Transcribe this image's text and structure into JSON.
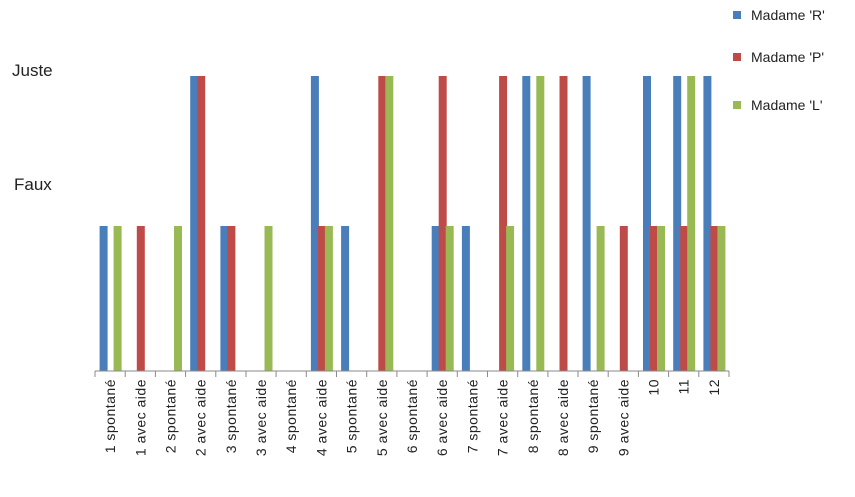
{
  "chart_data": {
    "type": "bar",
    "title": "",
    "xlabel": "",
    "ylabel": "",
    "y_levels": [
      {
        "value": 1,
        "label": "Faux"
      },
      {
        "value": 2,
        "label": "Juste"
      }
    ],
    "ylim": [
      0,
      2
    ],
    "grid": false,
    "legend_position": "top-right",
    "categories": [
      "1 spontané",
      "1 avec aide",
      "2 spontané",
      "2 avec aide",
      "3 spontané",
      "3 avec aide",
      "4 spontané",
      "4 avec aide",
      "5 spontané",
      "5 avec aide",
      "6 spontané",
      "6 avec aide",
      "7 spontané",
      "7 avec aide",
      "8 spontané",
      "8 avec aide",
      "9 spontané",
      "9 avec aide",
      "10",
      "11",
      "12"
    ],
    "series": [
      {
        "name": "Madame 'R'",
        "color": "#4a7ebb",
        "values": [
          1,
          0,
          0,
          2,
          1,
          0,
          0,
          2,
          1,
          0,
          0,
          1,
          1,
          0,
          2,
          0,
          2,
          0,
          2,
          2,
          2
        ]
      },
      {
        "name": "Madame 'P'",
        "color": "#be4b48",
        "values": [
          0,
          1,
          0,
          2,
          1,
          0,
          0,
          1,
          0,
          2,
          0,
          2,
          0,
          2,
          0,
          2,
          0,
          1,
          1,
          1,
          1
        ]
      },
      {
        "name": "Madame 'L'",
        "color": "#98b954",
        "values": [
          1,
          0,
          1,
          0,
          0,
          1,
          0,
          1,
          0,
          2,
          0,
          1,
          0,
          1,
          2,
          0,
          1,
          0,
          1,
          2,
          1
        ]
      }
    ]
  }
}
